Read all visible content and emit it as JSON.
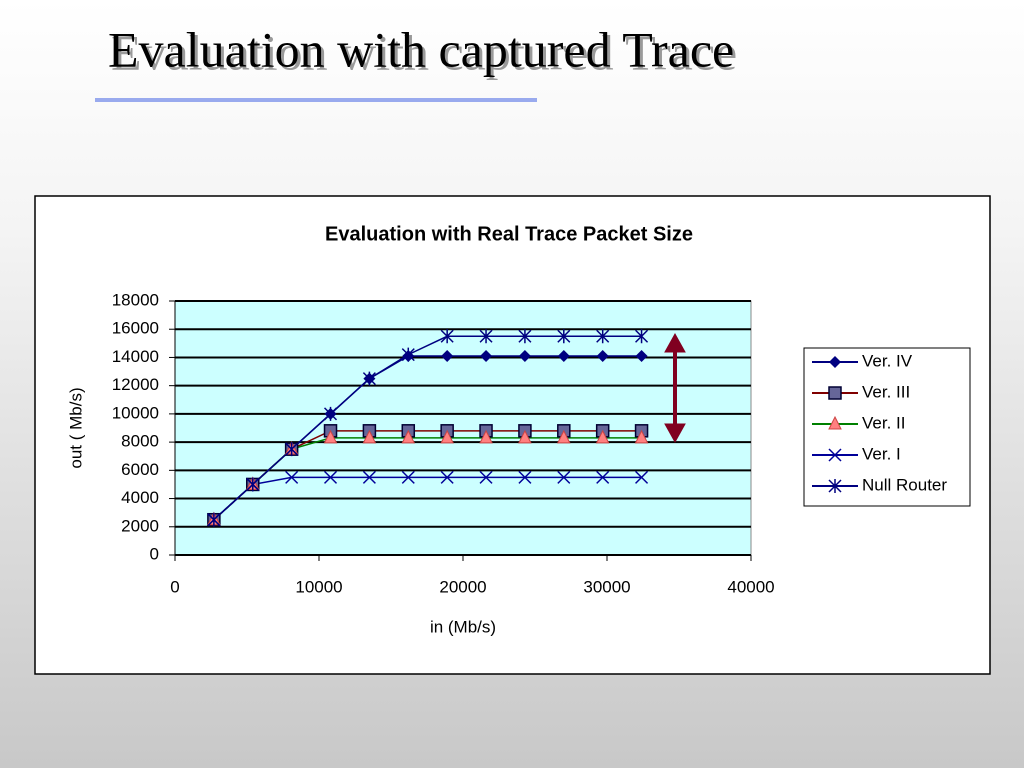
{
  "slide": {
    "title": "Evaluation with captured Trace"
  },
  "chart_data": {
    "type": "line",
    "title": "Evaluation with Real Trace Packet Size",
    "x_label": "in (Mb/s)",
    "y_label": "out ( Mb/s)",
    "x": [
      2700,
      5400,
      8100,
      10800,
      13500,
      16200,
      18900,
      21600,
      24300,
      27000,
      29700,
      32400
    ],
    "xlim": [
      0,
      40000
    ],
    "xticks": [
      0,
      10000,
      20000,
      30000,
      40000
    ],
    "ylim": [
      0,
      18000
    ],
    "yticks": [
      0,
      2000,
      4000,
      6000,
      8000,
      10000,
      12000,
      14000,
      16000,
      18000
    ],
    "grid": true,
    "legend": "right",
    "series": [
      {
        "name": "Ver. IV",
        "color": "#000080",
        "marker": "diamond",
        "values": [
          2500,
          5000,
          7500,
          10000,
          12500,
          14100,
          14100,
          14100,
          14100,
          14100,
          14100,
          14100
        ]
      },
      {
        "name": "Ver. III",
        "color": "#800000",
        "marker": "square",
        "values": [
          2500,
          5000,
          7500,
          8800,
          8800,
          8800,
          8800,
          8800,
          8800,
          8800,
          8800,
          8800
        ]
      },
      {
        "name": "Ver. II",
        "color": "#008000",
        "marker": "triangle",
        "values": [
          2500,
          5000,
          7500,
          8300,
          8300,
          8300,
          8300,
          8300,
          8300,
          8300,
          8300,
          8300
        ]
      },
      {
        "name": "Ver. I",
        "color": "#000099",
        "marker": "x",
        "values": [
          2500,
          5000,
          5500,
          5500,
          5500,
          5500,
          5500,
          5500,
          5500,
          5500,
          5500,
          5500
        ]
      },
      {
        "name": "Null Router",
        "color": "#000080",
        "marker": "star",
        "values": [
          2500,
          5000,
          7500,
          10000,
          12500,
          14200,
          15500,
          15500,
          15500,
          15500,
          15500,
          15500
        ]
      }
    ]
  }
}
